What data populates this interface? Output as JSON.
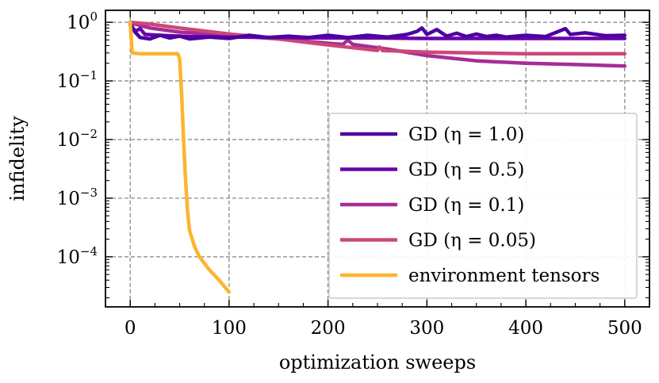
{
  "chart_data": {
    "type": "line",
    "xlabel": "optimization sweeps",
    "ylabel": "infidelity",
    "xscale": "linear",
    "yscale": "log",
    "xlim": [
      -25,
      525
    ],
    "ylim": [
      1.4e-05,
      1.6
    ],
    "grid": true,
    "legend_position": "lower-right",
    "x_ticks": [
      {
        "value": 0,
        "label": "0"
      },
      {
        "value": 100,
        "label": "100"
      },
      {
        "value": 200,
        "label": "200"
      },
      {
        "value": 300,
        "label": "300"
      },
      {
        "value": 400,
        "label": "400"
      },
      {
        "value": 500,
        "label": "500"
      }
    ],
    "y_ticks": [
      {
        "value": 1,
        "base": "10",
        "exp": "0"
      },
      {
        "value": 0.1,
        "base": "10",
        "exp": "−1"
      },
      {
        "value": 0.01,
        "base": "10",
        "exp": "−2"
      },
      {
        "value": 0.001,
        "base": "10",
        "exp": "−3"
      },
      {
        "value": 0.0001,
        "base": "10",
        "exp": "−4"
      }
    ],
    "series": [
      {
        "name": "GD (η = 0.1)",
        "color": "#a62d97",
        "points": [
          [
            0,
            0.98
          ],
          [
            20,
            0.8
          ],
          [
            50,
            0.68
          ],
          [
            100,
            0.6
          ],
          [
            150,
            0.52
          ],
          [
            200,
            0.44
          ],
          [
            215,
            0.42
          ],
          [
            220,
            0.5
          ],
          [
            225,
            0.42
          ],
          [
            260,
            0.35
          ],
          [
            300,
            0.27
          ],
          [
            350,
            0.22
          ],
          [
            400,
            0.2
          ],
          [
            450,
            0.19
          ],
          [
            500,
            0.18
          ]
        ]
      },
      {
        "name": "GD (η = 0.05)",
        "color": "#cc4778",
        "points": [
          [
            0,
            1.0
          ],
          [
            20,
            0.93
          ],
          [
            50,
            0.8
          ],
          [
            100,
            0.63
          ],
          [
            150,
            0.52
          ],
          [
            200,
            0.41
          ],
          [
            250,
            0.33
          ],
          [
            252,
            0.38
          ],
          [
            255,
            0.33
          ],
          [
            300,
            0.31
          ],
          [
            350,
            0.3
          ],
          [
            400,
            0.29
          ],
          [
            450,
            0.29
          ],
          [
            500,
            0.29
          ]
        ]
      },
      {
        "name": "GD (η = 0.5)",
        "color": "#6a00a8",
        "points": [
          [
            0,
            0.95
          ],
          [
            5,
            0.7
          ],
          [
            10,
            0.78
          ],
          [
            15,
            0.62
          ],
          [
            30,
            0.6
          ],
          [
            60,
            0.57
          ],
          [
            100,
            0.56
          ],
          [
            150,
            0.55
          ],
          [
            200,
            0.54
          ],
          [
            250,
            0.54
          ],
          [
            300,
            0.53
          ],
          [
            350,
            0.53
          ],
          [
            400,
            0.53
          ],
          [
            450,
            0.53
          ],
          [
            500,
            0.53
          ]
        ]
      },
      {
        "name": "GD (η = 1.0)",
        "color": "#4c02a1",
        "points": [
          [
            0,
            0.9
          ],
          [
            5,
            0.68
          ],
          [
            10,
            0.55
          ],
          [
            20,
            0.52
          ],
          [
            30,
            0.6
          ],
          [
            40,
            0.54
          ],
          [
            50,
            0.58
          ],
          [
            60,
            0.52
          ],
          [
            80,
            0.56
          ],
          [
            100,
            0.53
          ],
          [
            120,
            0.6
          ],
          [
            140,
            0.55
          ],
          [
            160,
            0.58
          ],
          [
            180,
            0.55
          ],
          [
            200,
            0.6
          ],
          [
            220,
            0.55
          ],
          [
            240,
            0.6
          ],
          [
            260,
            0.56
          ],
          [
            280,
            0.62
          ],
          [
            290,
            0.7
          ],
          [
            295,
            0.8
          ],
          [
            300,
            0.62
          ],
          [
            310,
            0.75
          ],
          [
            320,
            0.58
          ],
          [
            330,
            0.65
          ],
          [
            340,
            0.57
          ],
          [
            350,
            0.63
          ],
          [
            360,
            0.57
          ],
          [
            370,
            0.6
          ],
          [
            380,
            0.56
          ],
          [
            400,
            0.6
          ],
          [
            420,
            0.57
          ],
          [
            440,
            0.78
          ],
          [
            445,
            0.62
          ],
          [
            460,
            0.66
          ],
          [
            480,
            0.59
          ],
          [
            500,
            0.6
          ]
        ]
      },
      {
        "name": "environment tensors",
        "color": "#fdb42f",
        "points": [
          [
            0,
            1.0
          ],
          [
            2,
            0.3
          ],
          [
            10,
            0.29
          ],
          [
            30,
            0.29
          ],
          [
            48,
            0.29
          ],
          [
            50,
            0.24
          ],
          [
            52,
            0.06
          ],
          [
            54,
            0.01
          ],
          [
            56,
            0.002
          ],
          [
            58,
            0.0006
          ],
          [
            60,
            0.00028
          ],
          [
            65,
            0.00015
          ],
          [
            70,
            0.0001
          ],
          [
            80,
            6e-05
          ],
          [
            90,
            4e-05
          ],
          [
            100,
            2.5e-05
          ]
        ]
      }
    ],
    "legend_order": [
      3,
      2,
      0,
      1,
      4
    ]
  }
}
